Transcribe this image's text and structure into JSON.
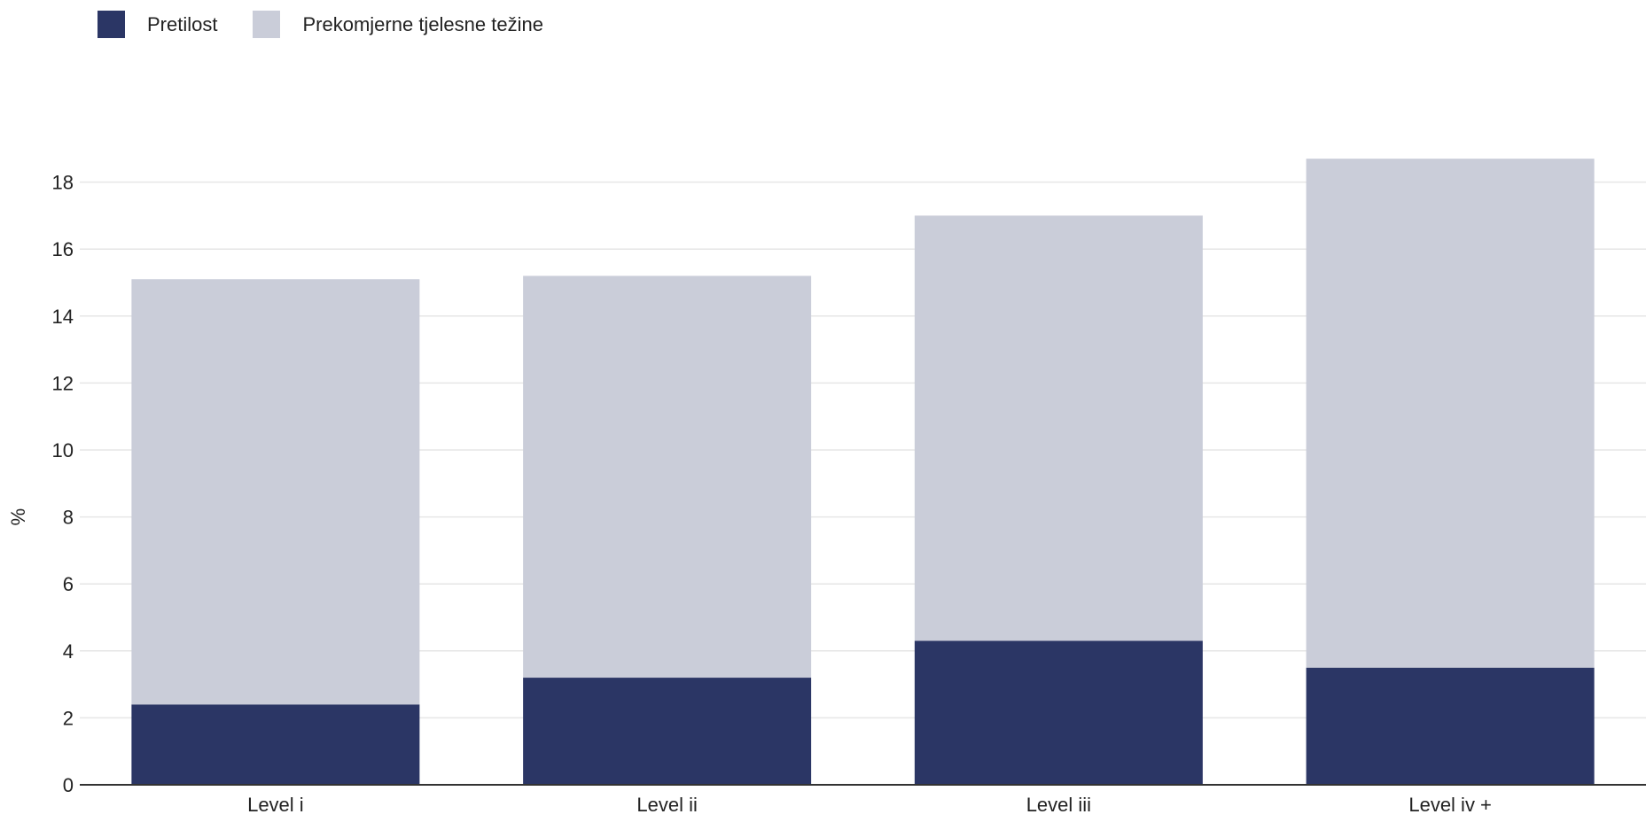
{
  "chart_data": {
    "type": "bar",
    "stacked": true,
    "categories": [
      "Level i",
      "Level ii",
      "Level iii",
      "Level iv +"
    ],
    "series": [
      {
        "name": "Pretilost",
        "values": [
          2.4,
          3.2,
          4.3,
          3.5
        ],
        "color": "#2b3665"
      },
      {
        "name": "Prekomjerne tjelesne težine",
        "values": [
          12.7,
          12.0,
          12.7,
          15.2
        ],
        "color": "#cacdd9"
      }
    ],
    "ylabel": "%",
    "xlabel": "",
    "ylim": [
      0,
      18.7
    ],
    "yticks": [
      "0",
      "2",
      "4",
      "6",
      "8",
      "10",
      "12",
      "14",
      "16",
      "18"
    ],
    "grid": true,
    "legend_position": "top-left"
  }
}
